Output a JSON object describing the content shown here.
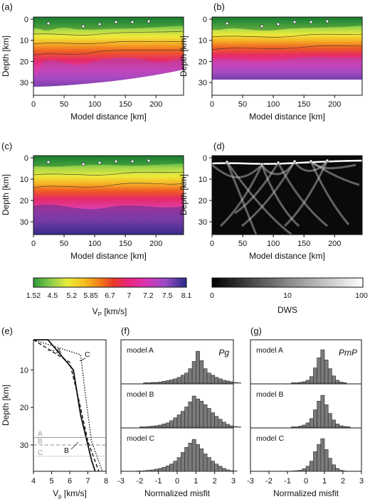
{
  "figure": {
    "panel_labels": [
      "(a)",
      "(b)",
      "(c)",
      "(d)",
      "(e)",
      "(f)",
      "(g)"
    ],
    "section_axes": {
      "xlabel": "Model distance [km]",
      "ylabel": "Depth [km]",
      "xticks": [
        "0",
        "50",
        "100",
        "150",
        "200"
      ],
      "yticks": [
        "0",
        "10",
        "20",
        "30"
      ]
    },
    "vp_colorbar": {
      "label": "V",
      "label_sub": "P",
      "label_unit": " [km/s]",
      "ticks": [
        "1.52",
        "4.5",
        "5.2",
        "5.85",
        "6.7",
        "7",
        "7.2",
        "7.5",
        "8.1"
      ],
      "colors": [
        "#2e9b3a",
        "#7fc94a",
        "#e8ec3c",
        "#f6c020",
        "#f07a18",
        "#e83a28",
        "#e8247c",
        "#d834b4",
        "#9c4cc8",
        "#5c3aa0",
        "#2a2a8a"
      ]
    },
    "dws_colorbar": {
      "label": "DWS",
      "ticks": [
        "0",
        "10",
        "100"
      ]
    },
    "profile": {
      "xlabel": "V",
      "xlabel_sub": "p",
      "xlabel_unit": " [km/s]",
      "ylabel": "Depth [km]",
      "xticks": [
        "4",
        "5",
        "6",
        "7",
        "8"
      ],
      "yticks": [
        "10",
        "20",
        "30"
      ],
      "curve_labels": [
        "A",
        "B",
        "C"
      ],
      "moho_labels": [
        "A",
        "B",
        "C"
      ]
    },
    "histograms": {
      "xlabel": "Normalized misfit",
      "xticks": [
        "-3",
        "-2",
        "-1",
        "0",
        "1",
        "2",
        "3"
      ],
      "f_phase": "Pg",
      "g_phase": "PmP",
      "row_labels": [
        "model A",
        "model B",
        "model C"
      ]
    }
  },
  "chart_data": [
    {
      "type": "line",
      "panel": "(e)",
      "xlabel": "Vp [km/s]",
      "ylabel": "Depth [km]",
      "xlim": [
        4,
        8
      ],
      "ylim": [
        37,
        2
      ],
      "series": [
        {
          "name": "A",
          "style": "solid",
          "vp": [
            4.0,
            4.8,
            6.2,
            6.6,
            7.2,
            7.4
          ],
          "depth": [
            2,
            2,
            10,
            22,
            34,
            37
          ]
        },
        {
          "name": "B",
          "style": "dashed",
          "vp": [
            4.0,
            5.0,
            6.0,
            6.5,
            7.0,
            7.6
          ],
          "depth": [
            2,
            5,
            8,
            18,
            29,
            37
          ]
        },
        {
          "name": "C",
          "style": "dotted",
          "vp": [
            4.0,
            6.6,
            6.9,
            7.2,
            7.8
          ],
          "depth": [
            2,
            6,
            18,
            29,
            37
          ]
        }
      ],
      "moho_depths": [
        {
          "name": "A",
          "depth": 28
        },
        {
          "name": "B",
          "depth": 30
        },
        {
          "name": "C",
          "depth": 33
        }
      ]
    },
    {
      "type": "bar",
      "panel": "(f)",
      "phase": "Pg",
      "bin_width": 0.2,
      "bin_start": -3,
      "series": [
        {
          "name": "model A",
          "values": [
            0,
            0,
            0,
            0,
            0,
            0,
            1,
            1,
            2,
            2,
            3,
            5,
            7,
            9,
            12,
            16,
            22,
            28,
            40,
            60,
            88,
            62,
            40,
            28,
            22,
            16,
            12,
            8,
            6,
            4,
            2,
            1,
            0,
            0,
            0,
            0
          ]
        },
        {
          "name": "model B",
          "values": [
            0,
            0,
            0,
            0,
            0,
            1,
            1,
            2,
            3,
            4,
            6,
            9,
            12,
            18,
            26,
            34,
            44,
            56,
            70,
            86,
            78,
            72,
            62,
            52,
            40,
            30,
            22,
            14,
            8,
            4,
            2,
            1,
            0,
            0,
            0,
            0
          ]
        },
        {
          "name": "model C",
          "values": [
            0,
            0,
            0,
            0,
            1,
            1,
            2,
            3,
            4,
            6,
            8,
            11,
            15,
            20,
            28,
            38,
            52,
            66,
            78,
            88,
            74,
            62,
            48,
            38,
            28,
            20,
            14,
            8,
            4,
            2,
            1,
            0,
            0,
            0,
            0,
            0
          ]
        }
      ]
    },
    {
      "type": "bar",
      "panel": "(g)",
      "phase": "PmP",
      "bin_width": 0.2,
      "bin_start": -3,
      "series": [
        {
          "name": "model A",
          "values": [
            0,
            0,
            0,
            0,
            0,
            0,
            0,
            0,
            0,
            0,
            0,
            1,
            1,
            2,
            4,
            8,
            18,
            42,
            70,
            92,
            64,
            40,
            20,
            8,
            3,
            1,
            0,
            0,
            0,
            0,
            0,
            0,
            0,
            0,
            0,
            0
          ]
        },
        {
          "name": "model B",
          "values": [
            0,
            0,
            0,
            0,
            0,
            0,
            0,
            0,
            0,
            0,
            0,
            1,
            1,
            3,
            6,
            12,
            24,
            48,
            72,
            88,
            62,
            38,
            20,
            9,
            4,
            2,
            1,
            0,
            0,
            0,
            0,
            0,
            0,
            0,
            0,
            0
          ]
        },
        {
          "name": "model C",
          "values": [
            0,
            0,
            0,
            0,
            0,
            0,
            0,
            0,
            0,
            0,
            0,
            1,
            2,
            3,
            7,
            14,
            28,
            54,
            74,
            90,
            60,
            36,
            18,
            8,
            3,
            1,
            0,
            0,
            0,
            0,
            0,
            0,
            0,
            0,
            0,
            0
          ]
        }
      ]
    }
  ]
}
